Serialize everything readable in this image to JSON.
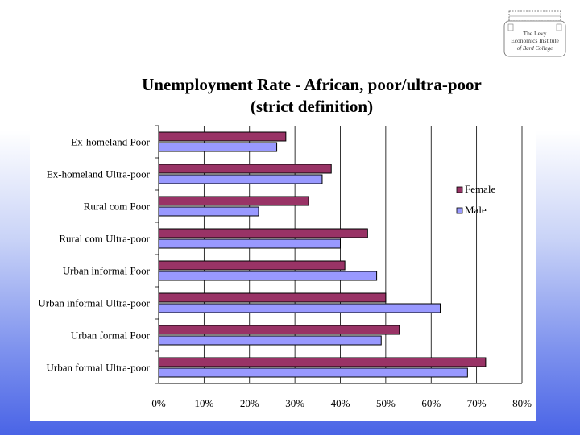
{
  "logo": {
    "line1": "The Levy",
    "line2": "Economics Institute",
    "line3": "of Bard College"
  },
  "chart_data": {
    "type": "bar",
    "orientation": "horizontal",
    "title": "Unemployment Rate - African, poor/ultra-poor",
    "subtitle": "(strict definition)",
    "categories": [
      "Ex-homeland Poor",
      "Ex-homeland Ultra-poor",
      "Rural com Poor",
      "Rural com Ultra-poor",
      "Urban informal Poor",
      "Urban informal Ultra-poor",
      "Urban formal Poor",
      "Urban formal Ultra-poor"
    ],
    "series": [
      {
        "name": "Female",
        "color": "#993366",
        "values": [
          28,
          38,
          33,
          46,
          41,
          50,
          53,
          72
        ]
      },
      {
        "name": "Male",
        "color": "#9999ff",
        "values": [
          26,
          36,
          22,
          40,
          48,
          62,
          49,
          68
        ]
      }
    ],
    "xlim": [
      0,
      80
    ],
    "xticks": [
      "0%",
      "10%",
      "20%",
      "30%",
      "40%",
      "50%",
      "60%",
      "70%",
      "80%"
    ],
    "grid": true,
    "legend_position": "right"
  }
}
